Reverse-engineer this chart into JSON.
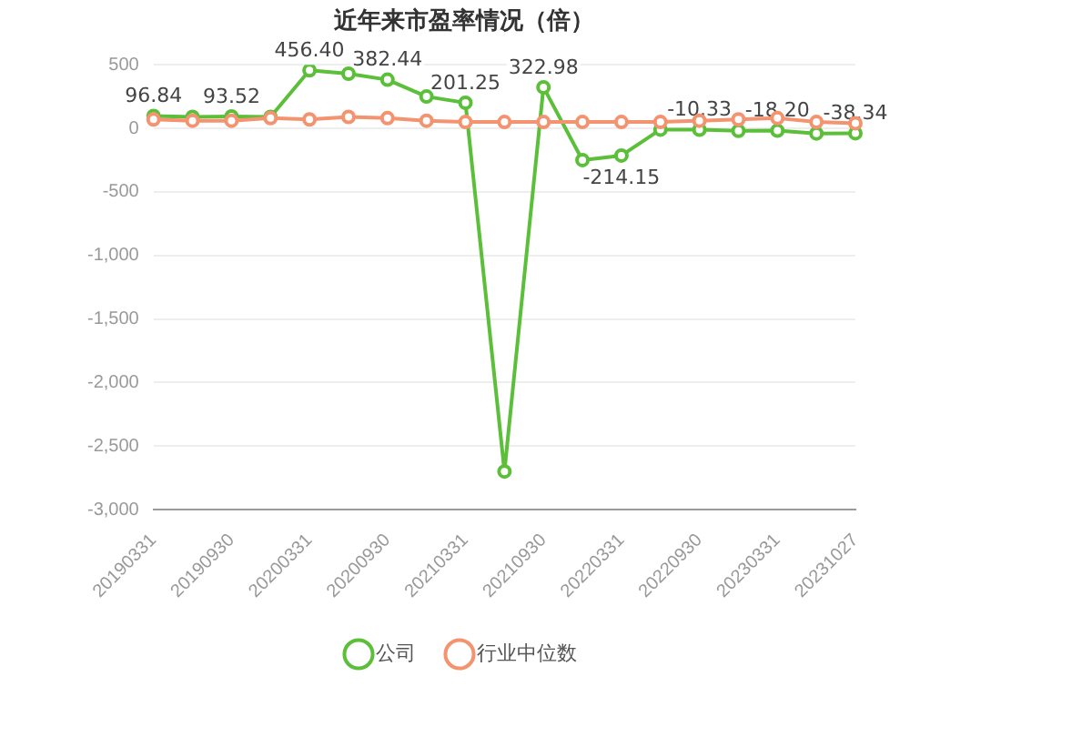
{
  "chart_data": {
    "type": "line",
    "title": "近年来市盈率情况（倍）",
    "categories": [
      "20190331",
      null,
      "20190930",
      null,
      "20200331",
      null,
      "20200930",
      null,
      "20210331",
      null,
      "20210930",
      null,
      "20220331",
      null,
      "20220930",
      null,
      "20230331",
      null,
      "20231027"
    ],
    "series": [
      {
        "name": "公司",
        "color": "#5cbf3a",
        "values": [
          96.84,
          90,
          93.52,
          90,
          456.4,
          430,
          382.44,
          250,
          201.25,
          -2700,
          322.98,
          -250,
          -214.15,
          -10,
          -10.33,
          -20,
          -18.2,
          -40,
          -38.34
        ],
        "value_labels": [
          "96.84",
          null,
          "93.52",
          null,
          "456.40",
          null,
          "382.44",
          null,
          "201.25",
          null,
          "322.98",
          null,
          "-214.15",
          null,
          "-10.33",
          null,
          "-18.20",
          null,
          "-38.34"
        ]
      },
      {
        "name": "行业中位数",
        "color": "#f4936f",
        "values": [
          70,
          60,
          60,
          80,
          70,
          90,
          80,
          60,
          50,
          50,
          50,
          50,
          50,
          50,
          60,
          70,
          80,
          50,
          40
        ]
      }
    ],
    "ylim": [
      -3000,
      500
    ],
    "yticks": [
      {
        "value": -3000,
        "label": "-3,000"
      },
      {
        "value": -2500,
        "label": "-2,500"
      },
      {
        "value": -2000,
        "label": "-2,000"
      },
      {
        "value": -1500,
        "label": "-1,500"
      },
      {
        "value": -1000,
        "label": "-1,000"
      },
      -500,
      0,
      500
    ],
    "grid": "y",
    "legend": "bottom",
    "marker": "circle",
    "line_style": "solid"
  }
}
